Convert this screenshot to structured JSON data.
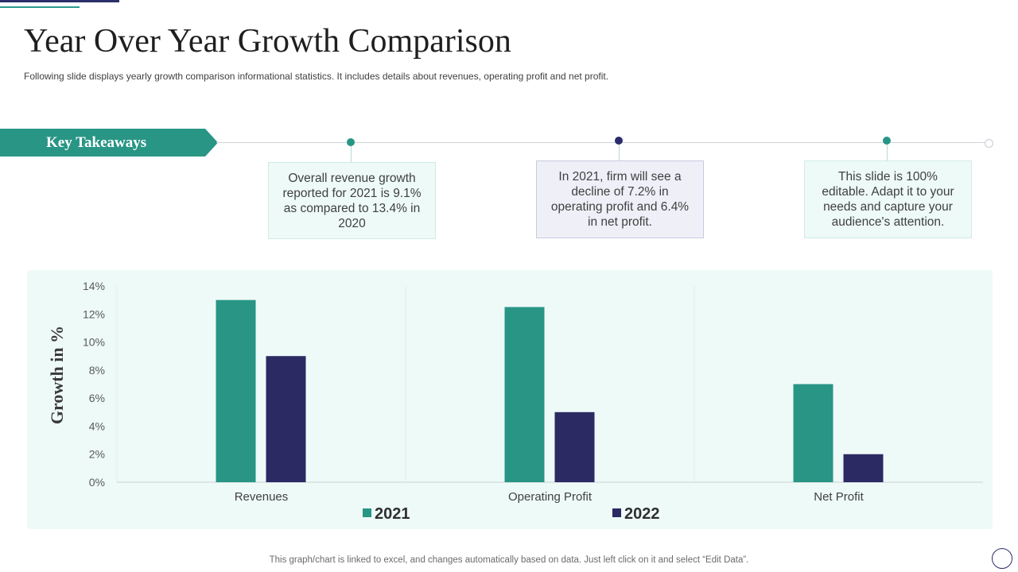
{
  "page": {
    "title": "Year Over Year Growth Comparison",
    "subtitle": "Following slide displays yearly growth comparison informational  statistics. It includes details about revenues,  operating profit and net profit.",
    "footer": "This graph/chart is linked to excel,  and changes automatically based on data. Just left click on it and select “Edit Data”."
  },
  "takeaways": {
    "label": "Key Takeaways",
    "items": [
      {
        "text": "Overall revenue growth reported for 2021 is 9.1% as compared to 13.4% in 2020",
        "color": "#289585"
      },
      {
        "text": "In 2021, firm will see a decline of 7.2% in operating profit and 6.4% in net profit.",
        "color": "#2b2b6e"
      },
      {
        "text": "This slide is 100% editable. Adapt it to your needs and capture your audience's attention.",
        "color": "#289585"
      }
    ]
  },
  "chart_data": {
    "type": "bar",
    "title": "",
    "xlabel": "",
    "ylabel": "Growth in %",
    "categories": [
      "Revenues",
      "Operating Profit",
      "Net Profit"
    ],
    "series": [
      {
        "name": "2021",
        "values": [
          13,
          12.5,
          7
        ],
        "color": "#289585"
      },
      {
        "name": "2022",
        "values": [
          9,
          5,
          2
        ],
        "color": "#2b2a63"
      }
    ],
    "ylim": [
      0,
      14
    ],
    "yticks": [
      0,
      2,
      4,
      6,
      8,
      10,
      12,
      14
    ],
    "ytick_suffix": "%",
    "legend_position": "bottom-center",
    "grid": false
  }
}
